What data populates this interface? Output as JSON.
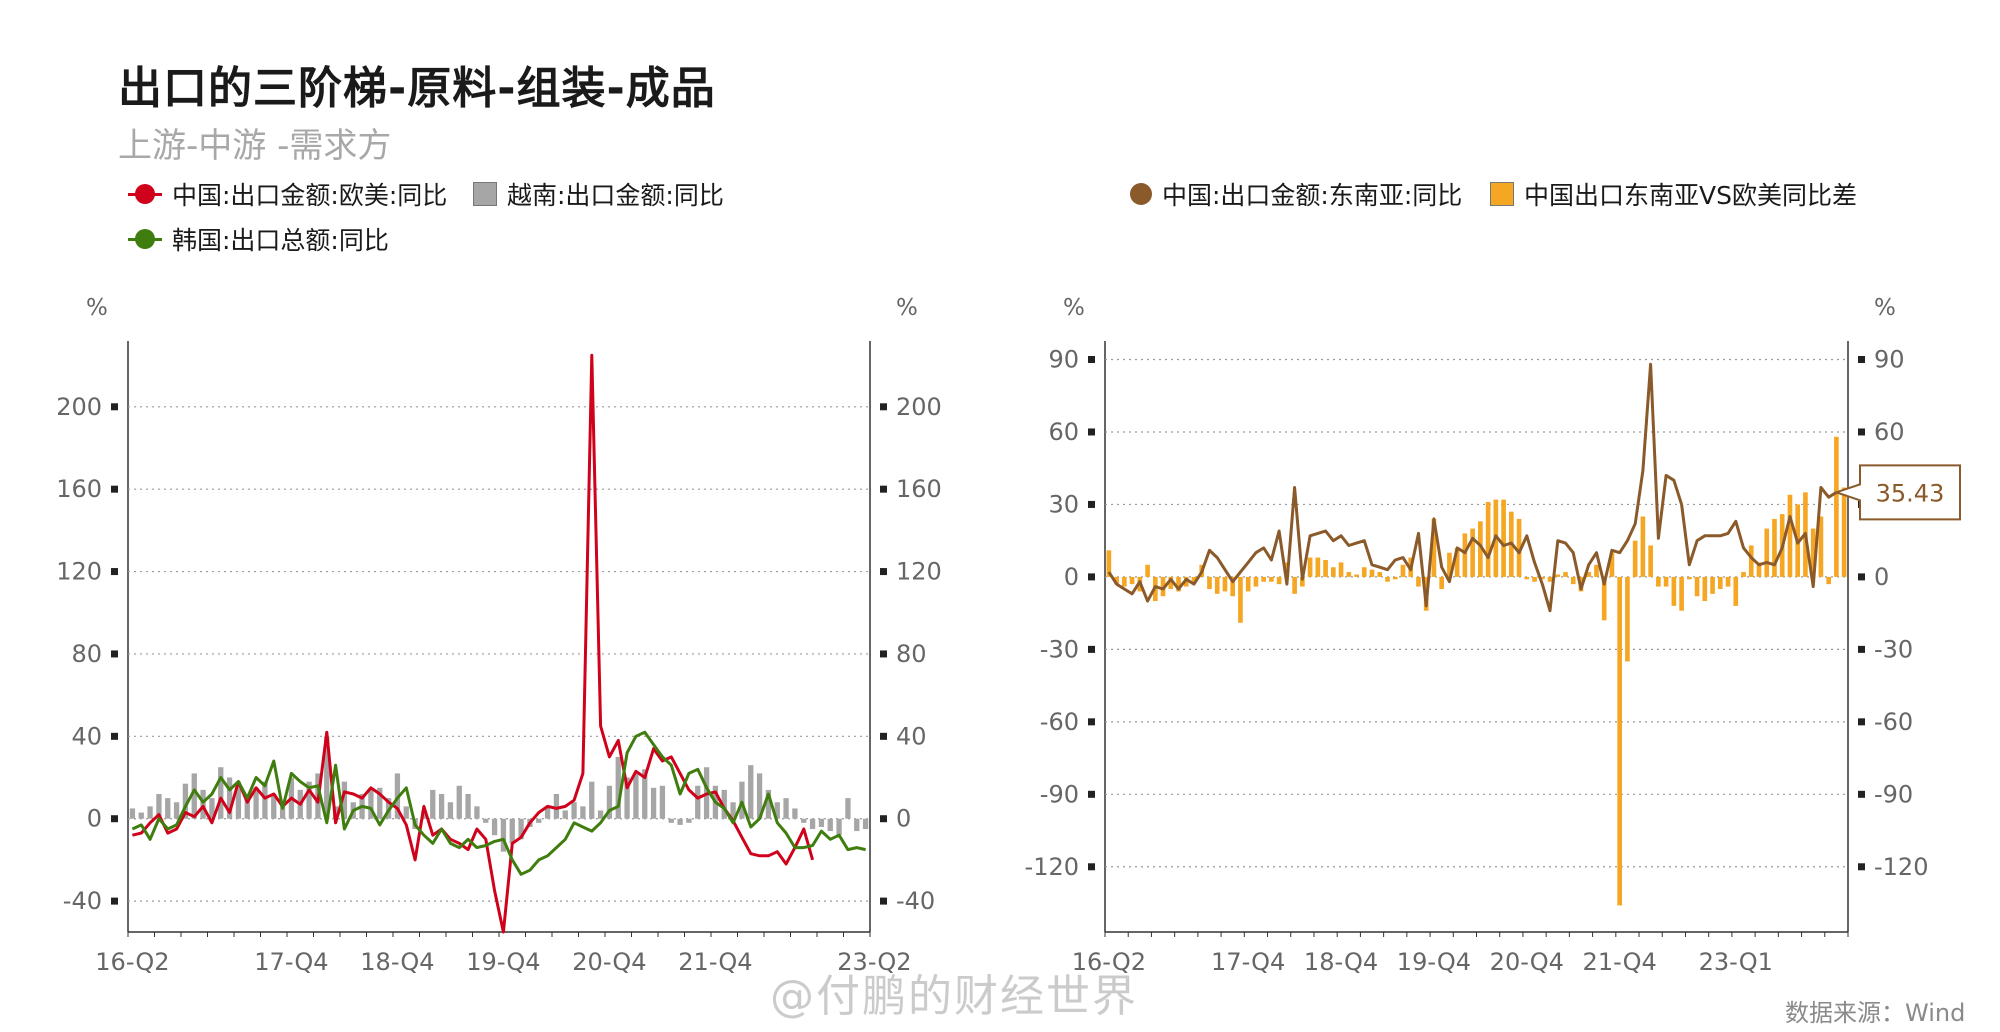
{
  "title": "出口的三阶梯-原料-组装-成品",
  "subtitle": "上游-中游 -需求方",
  "watermark": "@付鹏的财经世界",
  "source": "数据来源：Wind",
  "colors": {
    "china_us_eu": "#d0021b",
    "vietnam": "#a6a6a6",
    "korea": "#3f7d0e",
    "china_asean": "#8b5a2b",
    "diff": "#f5a623"
  },
  "chart_data": [
    {
      "type": "line",
      "unit_left": "%",
      "unit_right": "%",
      "ylim": [
        -55,
        230
      ],
      "yticks": [
        -40,
        0,
        40,
        80,
        120,
        160,
        200
      ],
      "ytick_labels": [
        "-40",
        "0",
        "40",
        "80",
        "120",
        "160",
        "200"
      ],
      "x_tick_labels": [
        "16-Q2",
        "17-Q4",
        "18-Q4",
        "19-Q4",
        "20-Q4",
        "21-Q4",
        "23-Q2"
      ],
      "x_tick_index": [
        0,
        18,
        30,
        42,
        54,
        66,
        84
      ],
      "grid": true,
      "series": [
        {
          "name": "中国:出口金额:欧美:同比",
          "kind": "line",
          "values": [
            -8,
            -7,
            -2,
            2,
            -7,
            -5,
            3,
            1,
            6,
            -2,
            10,
            3,
            18,
            8,
            15,
            10,
            12,
            6,
            10,
            7,
            14,
            8,
            42,
            -2,
            13,
            12,
            10,
            15,
            12,
            8,
            5,
            -3,
            -20,
            6,
            -8,
            -5,
            -10,
            -12,
            -15,
            -5,
            -10,
            -35,
            -55,
            -12,
            -9,
            -2,
            3,
            6,
            5,
            6,
            9,
            22,
            225,
            45,
            30,
            38,
            15,
            23,
            20,
            34,
            28,
            30,
            22,
            14,
            10,
            12,
            13,
            5,
            -1,
            -9,
            -17,
            -18,
            -18,
            -16,
            -22,
            -14,
            -5,
            -20
          ]
        },
        {
          "name": "越南:出口金额:同比",
          "kind": "bar",
          "values": [
            5,
            3,
            6,
            12,
            10,
            8,
            17,
            22,
            14,
            10,
            25,
            20,
            18,
            10,
            15,
            18,
            12,
            8,
            20,
            14,
            18,
            22,
            40,
            6,
            18,
            8,
            12,
            14,
            15,
            10,
            22,
            6,
            -5,
            4,
            14,
            12,
            8,
            16,
            12,
            6,
            -2,
            -8,
            -16,
            -12,
            -10,
            -4,
            -2,
            6,
            12,
            4,
            8,
            6,
            18,
            4,
            16,
            30,
            20,
            22,
            24,
            15,
            16,
            -2,
            -3,
            -2,
            16,
            25,
            16,
            14,
            8,
            18,
            26,
            22,
            14,
            8,
            10,
            5,
            -2,
            -5,
            -4,
            -6,
            -8,
            10,
            -6,
            -5
          ]
        },
        {
          "name": "韩国:出口总额:同比",
          "kind": "line",
          "values": [
            -5,
            -3,
            -10,
            0,
            -5,
            -3,
            6,
            14,
            8,
            12,
            20,
            14,
            18,
            10,
            20,
            16,
            28,
            5,
            22,
            18,
            15,
            16,
            -2,
            26,
            -5,
            4,
            6,
            5,
            -3,
            4,
            10,
            15,
            -3,
            -8,
            -12,
            -5,
            -12,
            -14,
            -10,
            -14,
            -13,
            -11,
            -10,
            -20,
            -27,
            -25,
            -20,
            -18,
            -14,
            -10,
            -2,
            -4,
            -6,
            -2,
            4,
            6,
            32,
            40,
            42,
            36,
            30,
            26,
            12,
            22,
            24,
            15,
            8,
            5,
            -2,
            8,
            -4,
            0,
            12,
            -2,
            -7,
            -14,
            -14,
            -13,
            -6,
            -10,
            -8,
            -15,
            -14,
            -15
          ]
        }
      ]
    },
    {
      "type": "line",
      "unit_left": "%",
      "unit_right": "%",
      "ylim": [
        -147,
        96
      ],
      "yticks": [
        -120,
        -90,
        -60,
        -30,
        0,
        30,
        60,
        90
      ],
      "ytick_labels": [
        "-120",
        "-90",
        "-60",
        "-30",
        "0",
        "30",
        "60",
        "90"
      ],
      "x_tick_labels": [
        "16-Q2",
        "17-Q4",
        "18-Q4",
        "19-Q4",
        "20-Q4",
        "21-Q4",
        "23-Q1"
      ],
      "x_tick_index": [
        0,
        18,
        30,
        42,
        54,
        66,
        81
      ],
      "grid": true,
      "callout": "35.43",
      "series": [
        {
          "name": "中国:出口金额:东南亚:同比",
          "kind": "line",
          "values": [
            2,
            -3,
            -5,
            -7,
            -2,
            -10,
            -4,
            -5,
            -1,
            -5,
            -1,
            -3,
            2,
            11,
            8,
            3,
            -2,
            2,
            6,
            10,
            12,
            7,
            19,
            -3,
            37,
            -1,
            17,
            18,
            19,
            15,
            17,
            13,
            14,
            15,
            5,
            4,
            3,
            7,
            8,
            3,
            18,
            -12,
            24,
            4,
            -2,
            12,
            10,
            16,
            13,
            8,
            17,
            13,
            14,
            10,
            17,
            6,
            -3,
            -14,
            15,
            14,
            10,
            -5,
            5,
            10,
            -3,
            11,
            10,
            15,
            22,
            44,
            88,
            16,
            42,
            40,
            30,
            5,
            15,
            17,
            17,
            17,
            18,
            23,
            12,
            8,
            5,
            6,
            5,
            12,
            25,
            14,
            18,
            -4,
            37,
            33,
            35
          ]
        },
        {
          "name": "中国出口东南亚VS欧美同比差",
          "kind": "bar",
          "values": [
            11,
            -3,
            -4,
            -3,
            -6,
            5,
            -10,
            -8,
            -5,
            -6,
            -4,
            -2,
            5,
            -5,
            -7,
            -6,
            -8,
            -19,
            -6,
            -4,
            -2,
            -2,
            -3,
            6,
            -7,
            -4,
            8,
            8,
            7,
            4,
            6,
            2,
            1,
            4,
            3,
            2,
            -2,
            -1,
            5,
            8,
            -4,
            -14,
            24,
            -5,
            10,
            12,
            18,
            20,
            23,
            31,
            32,
            32,
            27,
            24,
            -1,
            -2,
            -1,
            -2,
            1,
            2,
            -3,
            -6,
            2,
            5,
            -18,
            10,
            -136,
            -35,
            15,
            25,
            13,
            -4,
            -4,
            -12,
            -14,
            -1,
            -8,
            -10,
            -7,
            -5,
            -4,
            -12,
            2,
            13,
            6,
            20,
            24,
            26,
            34,
            30,
            35,
            20,
            25,
            -3,
            58,
            37
          ]
        }
      ]
    }
  ]
}
